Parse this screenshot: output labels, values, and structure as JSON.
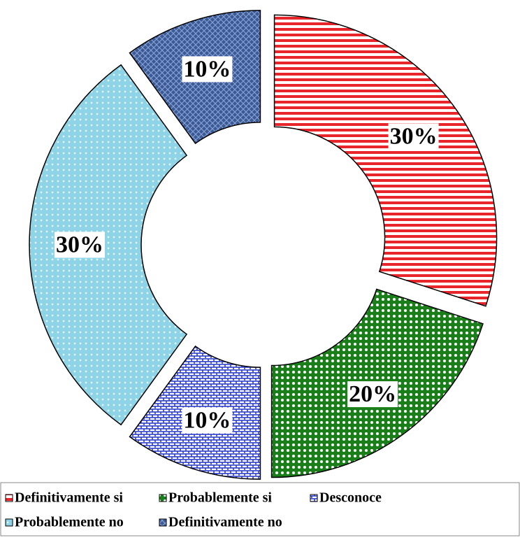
{
  "chart_data": {
    "type": "donut",
    "categories": [
      "Definitivamente si",
      "Probablemente si",
      "Desconoce",
      "Probablemente no",
      "Definitivamente no"
    ],
    "values": [
      30,
      20,
      10,
      30,
      10
    ],
    "value_labels": [
      "30%",
      "20%",
      "10%",
      "30%",
      "10%"
    ],
    "colors": [
      "#e8252b",
      "#1a7f1a",
      "#2233cc",
      "#8fd3e6",
      "#3a5a9a"
    ],
    "legend": "bottom"
  }
}
